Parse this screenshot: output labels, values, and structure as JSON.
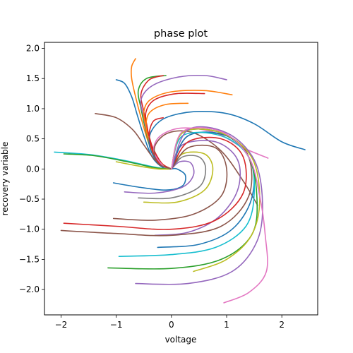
{
  "chart_data": {
    "type": "line",
    "title": "phase plot",
    "xlabel": "voltage",
    "ylabel": "recovery variable",
    "xlim": [
      -2.3,
      2.65
    ],
    "ylim": [
      -2.42,
      2.1
    ],
    "xticks": [
      -2,
      -1,
      0,
      1,
      2
    ],
    "yticks": [
      -2.0,
      -1.5,
      -1.0,
      -0.5,
      0.0,
      0.5,
      1.0,
      1.5,
      2.0
    ],
    "xtick_labels": [
      "−2",
      "−1",
      "0",
      "1",
      "2"
    ],
    "ytick_labels": [
      "−2.0",
      "−1.5",
      "−1.0",
      "−0.5",
      "0.0",
      "0.5",
      "1.0",
      "1.5",
      "2.0"
    ],
    "grid": false,
    "legend": "none",
    "series_colors": [
      "#1f77b4",
      "#ff7f0e",
      "#2ca02c",
      "#d62728",
      "#9467bd",
      "#8c564b",
      "#e377c2",
      "#7f7f7f",
      "#bcbd22",
      "#17becf"
    ],
    "series": [
      {
        "color": "#1f77b4",
        "values": [
          [
            -1.0,
            1.48
          ],
          [
            -0.85,
            1.42
          ],
          [
            -0.72,
            1.2
          ],
          [
            -0.62,
            0.9
          ],
          [
            -0.5,
            0.55
          ],
          [
            -0.35,
            0.2
          ],
          [
            -0.15,
            0.02
          ],
          [
            0.0,
            0.0
          ]
        ]
      },
      {
        "color": "#ff7f0e",
        "values": [
          [
            -0.65,
            1.83
          ],
          [
            -0.72,
            1.7
          ],
          [
            -0.72,
            1.5
          ],
          [
            -0.65,
            1.2
          ],
          [
            -0.55,
            0.85
          ],
          [
            -0.42,
            0.45
          ],
          [
            -0.25,
            0.12
          ],
          [
            0.0,
            0.0
          ]
        ]
      },
      {
        "color": "#2ca02c",
        "values": [
          [
            -0.1,
            1.55
          ],
          [
            -0.45,
            1.5
          ],
          [
            -0.6,
            1.3
          ],
          [
            -0.55,
            1.0
          ],
          [
            -0.48,
            0.7
          ],
          [
            -0.38,
            0.35
          ],
          [
            -0.2,
            0.08
          ],
          [
            0.0,
            0.0
          ]
        ]
      },
      {
        "color": "#d62728",
        "values": [
          [
            -0.15,
            1.55
          ],
          [
            -0.4,
            1.48
          ],
          [
            -0.55,
            1.25
          ],
          [
            -0.5,
            0.95
          ],
          [
            -0.42,
            0.6
          ],
          [
            -0.3,
            0.25
          ],
          [
            -0.12,
            0.04
          ],
          [
            0.0,
            0.0
          ]
        ]
      },
      {
        "color": "#9467bd",
        "values": [
          [
            1.0,
            1.48
          ],
          [
            0.6,
            1.55
          ],
          [
            0.1,
            1.52
          ],
          [
            -0.35,
            1.38
          ],
          [
            -0.55,
            1.15
          ],
          [
            -0.5,
            0.85
          ],
          [
            -0.42,
            0.5
          ],
          [
            -0.3,
            0.2
          ],
          [
            -0.1,
            0.02
          ],
          [
            0.0,
            0.0
          ]
        ]
      },
      {
        "color": "#ff7f0e",
        "values": [
          [
            1.1,
            1.23
          ],
          [
            0.6,
            1.3
          ],
          [
            0.0,
            1.28
          ],
          [
            -0.38,
            1.15
          ],
          [
            -0.5,
            0.95
          ],
          [
            -0.46,
            0.7
          ],
          [
            -0.38,
            0.38
          ],
          [
            -0.2,
            0.1
          ],
          [
            0.0,
            0.0
          ]
        ]
      },
      {
        "color": "#d62728",
        "values": [
          [
            0.6,
            1.25
          ],
          [
            0.1,
            1.25
          ],
          [
            -0.3,
            1.15
          ],
          [
            -0.46,
            0.95
          ],
          [
            -0.44,
            0.7
          ],
          [
            -0.36,
            0.4
          ],
          [
            -0.18,
            0.1
          ],
          [
            0.0,
            0.0
          ]
        ]
      },
      {
        "color": "#ff7f0e",
        "values": [
          [
            0.3,
            1.09
          ],
          [
            -0.1,
            1.07
          ],
          [
            -0.38,
            0.95
          ],
          [
            -0.46,
            0.75
          ],
          [
            -0.42,
            0.5
          ],
          [
            -0.3,
            0.2
          ],
          [
            -0.1,
            0.03
          ],
          [
            0.0,
            0.0
          ]
        ]
      },
      {
        "color": "#1f77b4",
        "values": [
          [
            2.42,
            0.32
          ],
          [
            2.0,
            0.45
          ],
          [
            1.5,
            0.75
          ],
          [
            1.0,
            0.92
          ],
          [
            0.4,
            0.95
          ],
          [
            -0.1,
            0.85
          ],
          [
            -0.35,
            0.65
          ],
          [
            -0.4,
            0.4
          ],
          [
            -0.28,
            0.15
          ],
          [
            -0.08,
            0.02
          ],
          [
            0.0,
            0.0
          ]
        ]
      },
      {
        "color": "#8c564b",
        "values": [
          [
            -1.38,
            0.92
          ],
          [
            -1.0,
            0.85
          ],
          [
            -0.7,
            0.65
          ],
          [
            -0.5,
            0.4
          ],
          [
            -0.3,
            0.15
          ],
          [
            -0.1,
            0.02
          ],
          [
            0.0,
            0.0
          ]
        ]
      },
      {
        "color": "#d62728",
        "values": [
          [
            -0.15,
            0.85
          ],
          [
            -0.32,
            0.8
          ],
          [
            -0.4,
            0.6
          ],
          [
            -0.36,
            0.35
          ],
          [
            -0.22,
            0.1
          ],
          [
            0.0,
            0.0
          ]
        ]
      },
      {
        "color": "#e377c2",
        "values": [
          [
            1.75,
            0.18
          ],
          [
            1.3,
            0.35
          ],
          [
            0.8,
            0.6
          ],
          [
            0.2,
            0.68
          ],
          [
            -0.2,
            0.55
          ],
          [
            -0.32,
            0.3
          ],
          [
            -0.15,
            0.05
          ],
          [
            0.0,
            0.0
          ]
        ]
      },
      {
        "color": "#17becf",
        "values": [
          [
            -2.12,
            0.28
          ],
          [
            -1.5,
            0.24
          ],
          [
            -0.9,
            0.15
          ],
          [
            -0.4,
            0.05
          ],
          [
            -0.1,
            0.0
          ],
          [
            0.0,
            0.0
          ]
        ]
      },
      {
        "color": "#2ca02c",
        "values": [
          [
            -1.95,
            0.25
          ],
          [
            -1.4,
            0.22
          ],
          [
            -0.8,
            0.12
          ],
          [
            -0.3,
            0.02
          ],
          [
            0.0,
            0.0
          ]
        ]
      },
      {
        "color": "#bcbd22",
        "values": [
          [
            -1.0,
            0.12
          ],
          [
            -0.6,
            0.05
          ],
          [
            -0.25,
            0.0
          ],
          [
            0.0,
            0.0
          ]
        ]
      },
      {
        "color": "#8c564b",
        "values": [
          [
            1.56,
            -0.6
          ],
          [
            1.3,
            -0.2
          ],
          [
            0.9,
            0.3
          ],
          [
            0.4,
            0.6
          ],
          [
            -0.05,
            0.6
          ],
          [
            -0.3,
            0.38
          ],
          [
            -0.25,
            0.1
          ],
          [
            0.0,
            0.0
          ]
        ]
      },
      {
        "color": "#1f77b4",
        "values": [
          [
            -1.05,
            -0.23
          ],
          [
            -0.6,
            -0.3
          ],
          [
            -0.1,
            -0.35
          ],
          [
            0.2,
            -0.28
          ],
          [
            0.25,
            -0.1
          ],
          [
            0.1,
            0.0
          ],
          [
            0.0,
            0.0
          ]
        ]
      },
      {
        "color": "#9467bd",
        "values": [
          [
            -0.85,
            -0.38
          ],
          [
            -0.3,
            -0.4
          ],
          [
            0.2,
            -0.3
          ],
          [
            0.4,
            -0.1
          ],
          [
            0.35,
            0.1
          ],
          [
            0.15,
            0.12
          ],
          [
            0.0,
            0.0
          ]
        ]
      },
      {
        "color": "#7f7f7f",
        "values": [
          [
            -0.6,
            -0.48
          ],
          [
            0.0,
            -0.48
          ],
          [
            0.5,
            -0.3
          ],
          [
            0.62,
            0.0
          ],
          [
            0.5,
            0.2
          ],
          [
            0.2,
            0.2
          ],
          [
            0.0,
            0.0
          ]
        ]
      },
      {
        "color": "#bcbd22",
        "values": [
          [
            -0.5,
            -0.55
          ],
          [
            0.1,
            -0.55
          ],
          [
            0.6,
            -0.35
          ],
          [
            0.75,
            0.0
          ],
          [
            0.6,
            0.25
          ],
          [
            0.2,
            0.25
          ],
          [
            0.0,
            0.0
          ]
        ]
      },
      {
        "color": "#8c564b",
        "values": [
          [
            -1.05,
            -0.82
          ],
          [
            -0.3,
            -0.85
          ],
          [
            0.4,
            -0.75
          ],
          [
            0.9,
            -0.45
          ],
          [
            1.0,
            0.0
          ],
          [
            0.8,
            0.35
          ],
          [
            0.3,
            0.35
          ],
          [
            0.0,
            0.0
          ]
        ]
      },
      {
        "color": "#9467bd",
        "values": [
          [
            -0.3,
            -1.1
          ],
          [
            0.3,
            -1.05
          ],
          [
            0.85,
            -0.8
          ],
          [
            1.2,
            -0.35
          ],
          [
            1.2,
            0.15
          ],
          [
            0.8,
            0.45
          ],
          [
            0.2,
            0.4
          ],
          [
            0.0,
            0.0
          ]
        ]
      },
      {
        "color": "#d62728",
        "values": [
          [
            -1.95,
            -0.9
          ],
          [
            -1.0,
            -0.95
          ],
          [
            0.0,
            -1.0
          ],
          [
            0.8,
            -0.85
          ],
          [
            1.3,
            -0.4
          ],
          [
            1.3,
            0.2
          ],
          [
            0.9,
            0.5
          ],
          [
            0.3,
            0.45
          ],
          [
            0.0,
            0.0
          ]
        ]
      },
      {
        "color": "#8c564b",
        "values": [
          [
            -2.0,
            -1.02
          ],
          [
            -1.0,
            -1.07
          ],
          [
            0.0,
            -1.1
          ],
          [
            0.9,
            -0.95
          ],
          [
            1.4,
            -0.45
          ],
          [
            1.4,
            0.2
          ],
          [
            1.0,
            0.55
          ],
          [
            0.3,
            0.55
          ],
          [
            0.0,
            0.0
          ]
        ]
      },
      {
        "color": "#1f77b4",
        "values": [
          [
            -0.25,
            -1.3
          ],
          [
            0.5,
            -1.25
          ],
          [
            1.1,
            -1.0
          ],
          [
            1.45,
            -0.5
          ],
          [
            1.45,
            0.1
          ],
          [
            1.0,
            0.55
          ],
          [
            0.3,
            0.55
          ],
          [
            0.0,
            0.0
          ]
        ]
      },
      {
        "color": "#17becf",
        "values": [
          [
            -0.95,
            -1.45
          ],
          [
            0.0,
            -1.42
          ],
          [
            0.8,
            -1.3
          ],
          [
            1.35,
            -0.95
          ],
          [
            1.5,
            -0.4
          ],
          [
            1.4,
            0.2
          ],
          [
            0.9,
            0.55
          ],
          [
            0.2,
            0.55
          ],
          [
            0.0,
            0.0
          ]
        ]
      },
      {
        "color": "#2ca02c",
        "values": [
          [
            -1.15,
            -1.64
          ],
          [
            0.0,
            -1.65
          ],
          [
            0.9,
            -1.5
          ],
          [
            1.45,
            -1.1
          ],
          [
            1.55,
            -0.5
          ],
          [
            1.4,
            0.2
          ],
          [
            0.9,
            0.6
          ],
          [
            0.2,
            0.6
          ],
          [
            0.0,
            0.0
          ]
        ]
      },
      {
        "color": "#bcbd22",
        "values": [
          [
            0.4,
            -1.7
          ],
          [
            1.0,
            -1.5
          ],
          [
            1.45,
            -1.1
          ],
          [
            1.6,
            -0.5
          ],
          [
            1.45,
            0.2
          ],
          [
            0.9,
            0.6
          ],
          [
            0.2,
            0.6
          ],
          [
            0.0,
            0.0
          ]
        ]
      },
      {
        "color": "#9467bd",
        "values": [
          [
            -0.65,
            -1.9
          ],
          [
            0.3,
            -1.9
          ],
          [
            1.1,
            -1.7
          ],
          [
            1.55,
            -1.2
          ],
          [
            1.65,
            -0.55
          ],
          [
            1.5,
            0.15
          ],
          [
            1.0,
            0.6
          ],
          [
            0.3,
            0.65
          ],
          [
            0.0,
            0.0
          ]
        ]
      },
      {
        "color": "#e377c2",
        "values": [
          [
            0.95,
            -2.22
          ],
          [
            1.4,
            -2.05
          ],
          [
            1.72,
            -1.7
          ],
          [
            1.7,
            -1.1
          ],
          [
            1.6,
            -0.45
          ],
          [
            1.4,
            0.2
          ],
          [
            0.9,
            0.62
          ],
          [
            0.2,
            0.62
          ],
          [
            0.0,
            0.0
          ]
        ]
      }
    ]
  }
}
